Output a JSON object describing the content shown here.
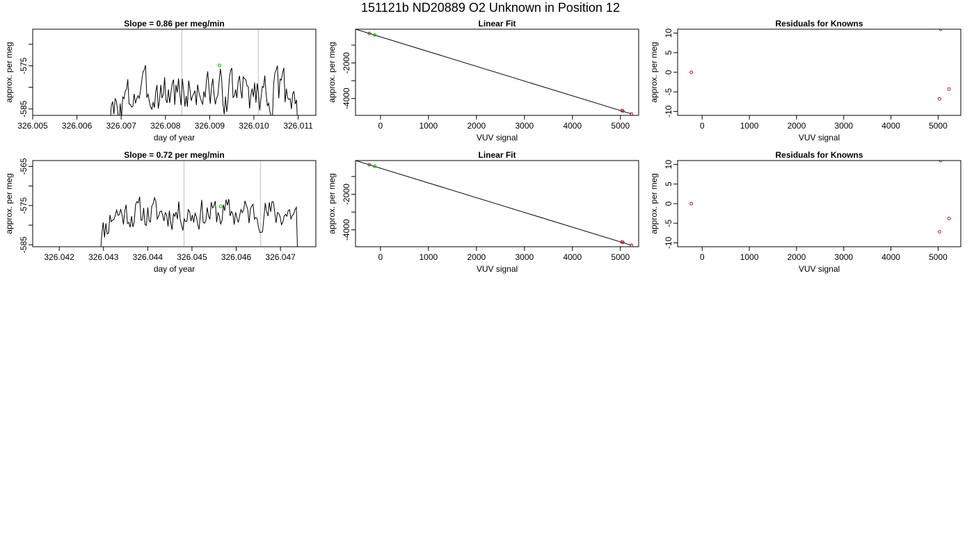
{
  "page_title": "151121b     ND20889   O2 Unknown in Position  12",
  "colors": {
    "trace": "#000000",
    "vline": "#c8c8c8",
    "known_point": "#b22222",
    "unknown_point": "#00cc00",
    "fit_line": "#000000"
  },
  "chart_data": [
    {
      "type": "line",
      "title": "Slope =  0.86  per meg/min",
      "xlabel": "day of year",
      "ylabel": "approx. per meg",
      "xlim": [
        326.005,
        326.0114
      ],
      "ylim": [
        -586.5,
        -566.5
      ],
      "xticks": [
        "326.005",
        "326.006",
        "326.007",
        "326.008",
        "326.009",
        "326.010",
        "326.011"
      ],
      "xtick_values": [
        326.005,
        326.006,
        326.007,
        326.008,
        326.009,
        326.01,
        326.011
      ],
      "yticks": [
        "-585",
        "-575"
      ],
      "ytick_values": [
        -585,
        -575
      ],
      "extra_ytick_values": [
        -580,
        -570
      ],
      "vlines": [
        326.00837,
        326.0101
      ],
      "trace_start": 326.00672,
      "trace_end": 326.01102,
      "trace_base": -581,
      "trace_amp": 5,
      "rise_end": 326.00735,
      "trace_seed": 3,
      "marker": {
        "x": 326.00922,
        "y": -574.9
      }
    },
    {
      "type": "scatter",
      "title": "Linear Fit",
      "xlabel": "VUV signal",
      "ylabel": "approx. per meg",
      "xlim": [
        -520,
        5380
      ],
      "ylim": [
        -4950,
        -100
      ],
      "xticks": [
        "0",
        "1000",
        "2000",
        "3000",
        "4000",
        "5000"
      ],
      "xtick_values": [
        0,
        1000,
        2000,
        3000,
        4000,
        5000
      ],
      "yticks": [
        "-2000",
        "-4000"
      ],
      "ytick_values": [
        -2000,
        -4000
      ],
      "extra_ytick_values": [
        -1000,
        -3000
      ],
      "fit_line": {
        "x": [
          -520,
          5230
        ],
        "y": [
          -100,
          -4870
        ]
      },
      "knowns": [
        {
          "x": -230,
          "y": -340
        },
        {
          "x": 5030,
          "y": -4680
        },
        {
          "x": 5050,
          "y": -4700
        },
        {
          "x": 5230,
          "y": -4870
        }
      ],
      "unknowns": [
        {
          "x": -120,
          "y": -420
        }
      ]
    },
    {
      "type": "scatter",
      "title": "Residuals for Knowns",
      "xlabel": "VUV signal",
      "ylabel": "approx. per meg",
      "xlim": [
        -520,
        5480
      ],
      "ylim": [
        -11,
        11
      ],
      "xticks": [
        "0",
        "1000",
        "2000",
        "3000",
        "4000",
        "5000"
      ],
      "xtick_values": [
        0,
        1000,
        2000,
        3000,
        4000,
        5000
      ],
      "yticks": [
        "-10",
        "-5",
        "0",
        "5",
        "10"
      ],
      "ytick_values": [
        -10,
        -5,
        0,
        5,
        10
      ],
      "points": [
        {
          "x": -230,
          "y": 0
        },
        {
          "x": 5030,
          "y": -6.8
        },
        {
          "x": 5050,
          "y": 11
        },
        {
          "x": 5230,
          "y": -4.3
        }
      ]
    },
    {
      "type": "line",
      "title": "Slope =  0.72  per meg/min",
      "xlabel": "day of year",
      "ylabel": "approx. per meg",
      "xlim": [
        326.0414,
        326.0478
      ],
      "ylim": [
        -585.5,
        -563.5
      ],
      "xticks": [
        "326.042",
        "326.043",
        "326.044",
        "326.045",
        "326.046",
        "326.047"
      ],
      "xtick_values": [
        326.042,
        326.043,
        326.044,
        326.045,
        326.046,
        326.047
      ],
      "yticks": [
        "-585",
        "-575",
        "-565"
      ],
      "ytick_values": [
        -585,
        -575,
        -565
      ],
      "extra_ytick_values": [
        -580,
        -570
      ],
      "vlines": [
        326.04482,
        326.04655
      ],
      "trace_start": 326.04284,
      "trace_end": 326.04742,
      "trace_base": -577,
      "trace_amp": 4,
      "rise_end": 326.04322,
      "trace_seed": 11,
      "marker": {
        "x": 326.04565,
        "y": -575.2
      }
    },
    {
      "type": "scatter",
      "title": "Linear Fit",
      "xlabel": "VUV signal",
      "ylabel": "approx. per meg",
      "xlim": [
        -520,
        5380
      ],
      "ylim": [
        -4950,
        -100
      ],
      "xticks": [
        "0",
        "1000",
        "2000",
        "3000",
        "4000",
        "5000"
      ],
      "xtick_values": [
        0,
        1000,
        2000,
        3000,
        4000,
        5000
      ],
      "yticks": [
        "-2000",
        "-4000"
      ],
      "ytick_values": [
        -2000,
        -4000
      ],
      "extra_ytick_values": [
        -1000,
        -3000
      ],
      "fit_line": {
        "x": [
          -520,
          5230
        ],
        "y": [
          -100,
          -4870
        ]
      },
      "knowns": [
        {
          "x": -230,
          "y": -340
        },
        {
          "x": 5030,
          "y": -4680
        },
        {
          "x": 5050,
          "y": -4700
        },
        {
          "x": 5230,
          "y": -4870
        }
      ],
      "unknowns": [
        {
          "x": -120,
          "y": -420
        }
      ]
    },
    {
      "type": "scatter",
      "title": "Residuals for Knowns",
      "xlabel": "VUV signal",
      "ylabel": "approx. per meg",
      "xlim": [
        -520,
        5480
      ],
      "ylim": [
        -11,
        11
      ],
      "xticks": [
        "0",
        "1000",
        "2000",
        "3000",
        "4000",
        "5000"
      ],
      "xtick_values": [
        0,
        1000,
        2000,
        3000,
        4000,
        5000
      ],
      "yticks": [
        "-10",
        "-5",
        "0",
        "5",
        "10"
      ],
      "ytick_values": [
        -10,
        -5,
        0,
        5,
        10
      ],
      "points": [
        {
          "x": -230,
          "y": 0
        },
        {
          "x": 5030,
          "y": -7.2
        },
        {
          "x": 5050,
          "y": 11
        },
        {
          "x": 5230,
          "y": -3.8
        }
      ]
    }
  ]
}
